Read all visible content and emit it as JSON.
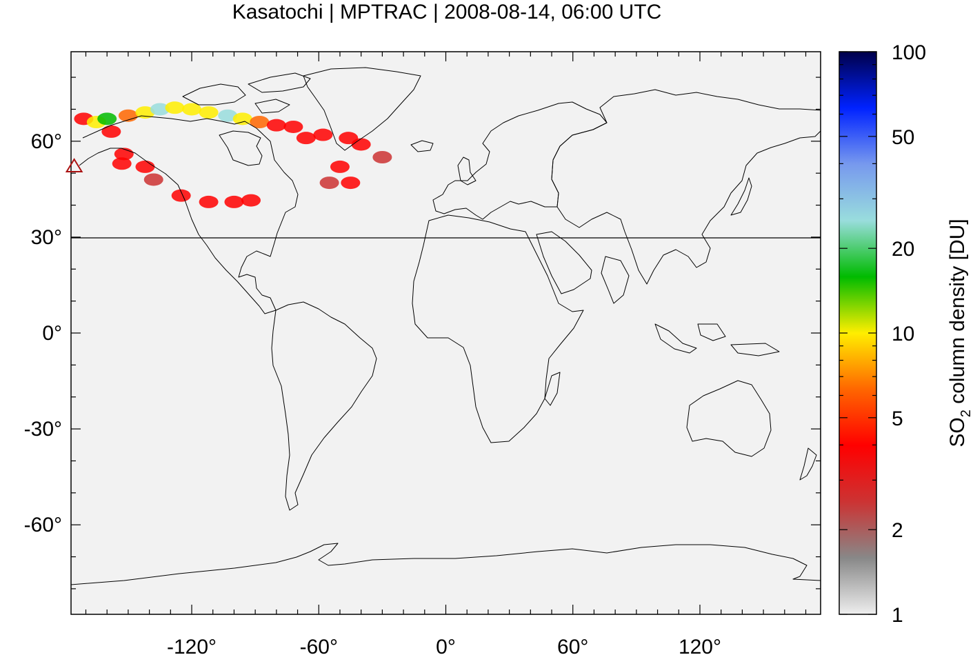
{
  "title": "Kasatochi | MPTRAC | 2008-08-14, 06:00 UTC",
  "colorbar": {
    "label_main": "SO",
    "label_sub": "2",
    "label_rest": " column density [DU]",
    "scale": "log",
    "range": [
      1,
      100
    ],
    "tick_labels": [
      "100",
      "50",
      "20",
      "10",
      "5",
      "2",
      "1"
    ],
    "tick_values": [
      100,
      50,
      20,
      10,
      5,
      2,
      1
    ],
    "colors": [
      "#eeeeee",
      "#888888",
      "#cc3333",
      "#ff0000",
      "#ff6600",
      "#ffee00",
      "#00bb00",
      "#99dddd",
      "#7799ee",
      "#0022ff",
      "#00004a"
    ]
  },
  "map": {
    "background": "#f2f2f2",
    "projection": "equirectangular",
    "lon_range": [
      -177,
      177
    ],
    "lat_range": [
      -88,
      88
    ],
    "x_tick_labels": [
      "-120°",
      "-60°",
      "0°",
      "60°",
      "120°"
    ],
    "x_tick_values": [
      -120,
      -60,
      0,
      60,
      120
    ],
    "y_tick_labels": [
      "60°",
      "30°",
      "0°",
      "-30°",
      "-60°"
    ],
    "y_tick_values": [
      60,
      30,
      0,
      -30,
      -60
    ],
    "reference_line_lat": 30,
    "volcano": {
      "name": "Kasatochi",
      "lon": -175.5,
      "lat": 52.2,
      "marker": "triangle-outline",
      "color": "#aa1111"
    }
  },
  "plume": [
    {
      "lon": -171,
      "lat": 67,
      "value": 5
    },
    {
      "lon": -165,
      "lat": 66,
      "value": 8
    },
    {
      "lon": -160,
      "lat": 67,
      "value": 18
    },
    {
      "lon": -150,
      "lat": 68,
      "value": 6
    },
    {
      "lon": -142,
      "lat": 69,
      "value": 8
    },
    {
      "lon": -135,
      "lat": 70,
      "value": 20
    },
    {
      "lon": -128,
      "lat": 70.5,
      "value": 12
    },
    {
      "lon": -120,
      "lat": 70,
      "value": 8
    },
    {
      "lon": -112,
      "lat": 69,
      "value": 10
    },
    {
      "lon": -103,
      "lat": 68,
      "value": 22
    },
    {
      "lon": -96,
      "lat": 67,
      "value": 8
    },
    {
      "lon": -88,
      "lat": 66,
      "value": 6
    },
    {
      "lon": -80,
      "lat": 65,
      "value": 5
    },
    {
      "lon": -72,
      "lat": 64.5,
      "value": 5
    },
    {
      "lon": -66,
      "lat": 61,
      "value": 4
    },
    {
      "lon": -158,
      "lat": 63,
      "value": 4
    },
    {
      "lon": -152,
      "lat": 56,
      "value": 4
    },
    {
      "lon": -153,
      "lat": 53,
      "value": 4
    },
    {
      "lon": -142,
      "lat": 52,
      "value": 4
    },
    {
      "lon": -138,
      "lat": 48,
      "value": 3
    },
    {
      "lon": -125,
      "lat": 43,
      "value": 4
    },
    {
      "lon": -112,
      "lat": 41,
      "value": 4
    },
    {
      "lon": -100,
      "lat": 41,
      "value": 4
    },
    {
      "lon": -92,
      "lat": 41.5,
      "value": 5
    },
    {
      "lon": -58,
      "lat": 62,
      "value": 4
    },
    {
      "lon": -46,
      "lat": 61,
      "value": 5
    },
    {
      "lon": -40,
      "lat": 59,
      "value": 4
    },
    {
      "lon": -30,
      "lat": 55,
      "value": 3
    },
    {
      "lon": -50,
      "lat": 52,
      "value": 4
    },
    {
      "lon": -45,
      "lat": 47,
      "value": 5
    },
    {
      "lon": -55,
      "lat": 47,
      "value": 3
    }
  ]
}
